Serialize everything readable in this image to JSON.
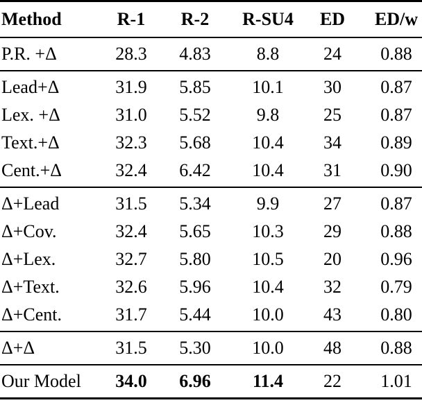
{
  "table": {
    "columns": [
      "Method",
      "R-1",
      "R-2",
      "R-SU4",
      "ED",
      "ED/w"
    ],
    "groups": [
      {
        "rows": [
          {
            "method": "P.R. +Δ",
            "values": [
              "28.3",
              "4.83",
              "8.8",
              "24",
              "0.88"
            ]
          }
        ]
      },
      {
        "rows": [
          {
            "method": "Lead+Δ",
            "values": [
              "31.9",
              "5.85",
              "10.1",
              "30",
              "0.87"
            ]
          },
          {
            "method": "Lex. +Δ",
            "values": [
              "31.0",
              "5.52",
              "9.8",
              "25",
              "0.87"
            ]
          },
          {
            "method": "Text.+Δ",
            "values": [
              "32.3",
              "5.68",
              "10.4",
              "34",
              "0.89"
            ]
          },
          {
            "method": "Cent.+Δ",
            "values": [
              "32.4",
              "6.42",
              "10.4",
              "31",
              "0.90"
            ]
          }
        ]
      },
      {
        "rows": [
          {
            "method": "Δ+Lead",
            "values": [
              "31.5",
              "5.34",
              "9.9",
              "27",
              "0.87"
            ]
          },
          {
            "method": "Δ+Cov.",
            "values": [
              "32.4",
              "5.65",
              "10.3",
              "29",
              "0.88"
            ]
          },
          {
            "method": "Δ+Lex.",
            "values": [
              "32.7",
              "5.80",
              "10.5",
              "20",
              "0.96"
            ]
          },
          {
            "method": "Δ+Text.",
            "values": [
              "32.6",
              "5.96",
              "10.4",
              "32",
              "0.79"
            ]
          },
          {
            "method": "Δ+Cent.",
            "values": [
              "31.7",
              "5.44",
              "10.0",
              "43",
              "0.80"
            ]
          }
        ]
      },
      {
        "rows": [
          {
            "method": "Δ+Δ",
            "values": [
              "31.5",
              "5.30",
              "10.0",
              "48",
              "0.88"
            ]
          }
        ]
      },
      {
        "rows": [
          {
            "method": "Our Model",
            "values": [
              "34.0",
              "6.96",
              "11.4",
              "22",
              "1.01"
            ],
            "bold_values": [
              true,
              true,
              true,
              false,
              false
            ]
          }
        ]
      }
    ],
    "colors": {
      "text": "#000000",
      "rule": "#000000",
      "background": "#ffffff"
    }
  }
}
